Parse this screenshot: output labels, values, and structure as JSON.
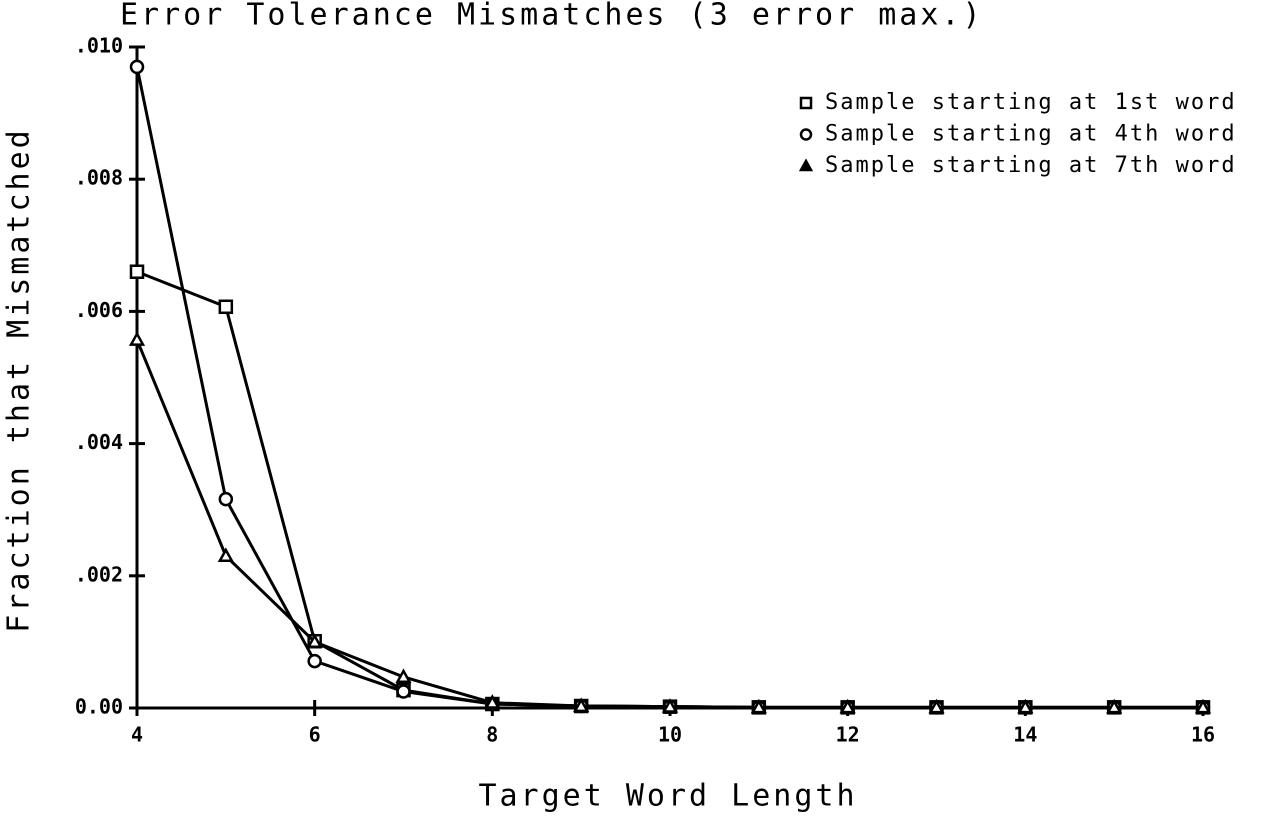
{
  "chart_data": {
    "type": "line",
    "title": "Error Tolerance Mismatches (3 error max.)",
    "x_label": "Target Word Length",
    "y_label": "Fraction that Mismatched",
    "xlim": [
      4,
      16
    ],
    "xticks": [
      4,
      6,
      8,
      10,
      12,
      14,
      16
    ],
    "ylim": [
      0,
      0.01
    ],
    "yticks": [
      {
        "value": 0,
        "label": "0.00"
      },
      {
        "value": 0.002,
        "label": ".002"
      },
      {
        "value": 0.004,
        "label": ".004"
      },
      {
        "value": 0.006,
        "label": ".006"
      },
      {
        "value": 0.008,
        "label": ".008"
      },
      {
        "value": 0.01,
        "label": ".010"
      }
    ],
    "legend": "upper right",
    "x": [
      4,
      5,
      6,
      7,
      8,
      9,
      10,
      11,
      12,
      13,
      14,
      15,
      16
    ],
    "series": [
      {
        "name": "Sample starting at 1st word",
        "marker": "square",
        "color": "#000000",
        "values": [
          0.0066,
          0.00607,
          0.00101,
          0.00027,
          6e-05,
          3e-05,
          2e-05,
          1e-05,
          1e-05,
          1e-05,
          1e-05,
          1e-05,
          1e-05
        ]
      },
      {
        "name": "Sample starting at 4th word",
        "marker": "circle",
        "color": "#000000",
        "values": [
          0.0097,
          0.00316,
          0.00071,
          0.00025,
          6e-05,
          3e-05,
          2e-05,
          1e-05,
          1e-05,
          1e-05,
          1e-05,
          1e-05,
          1e-05
        ]
      },
      {
        "name": "Sample starting at 7th word",
        "marker": "triangle",
        "color": "#000000",
        "values": [
          0.00557,
          0.0023,
          0.001,
          0.00047,
          8e-05,
          3e-05,
          2e-05,
          1e-05,
          1e-05,
          1e-05,
          1e-05,
          1e-05,
          1e-05
        ]
      }
    ]
  }
}
